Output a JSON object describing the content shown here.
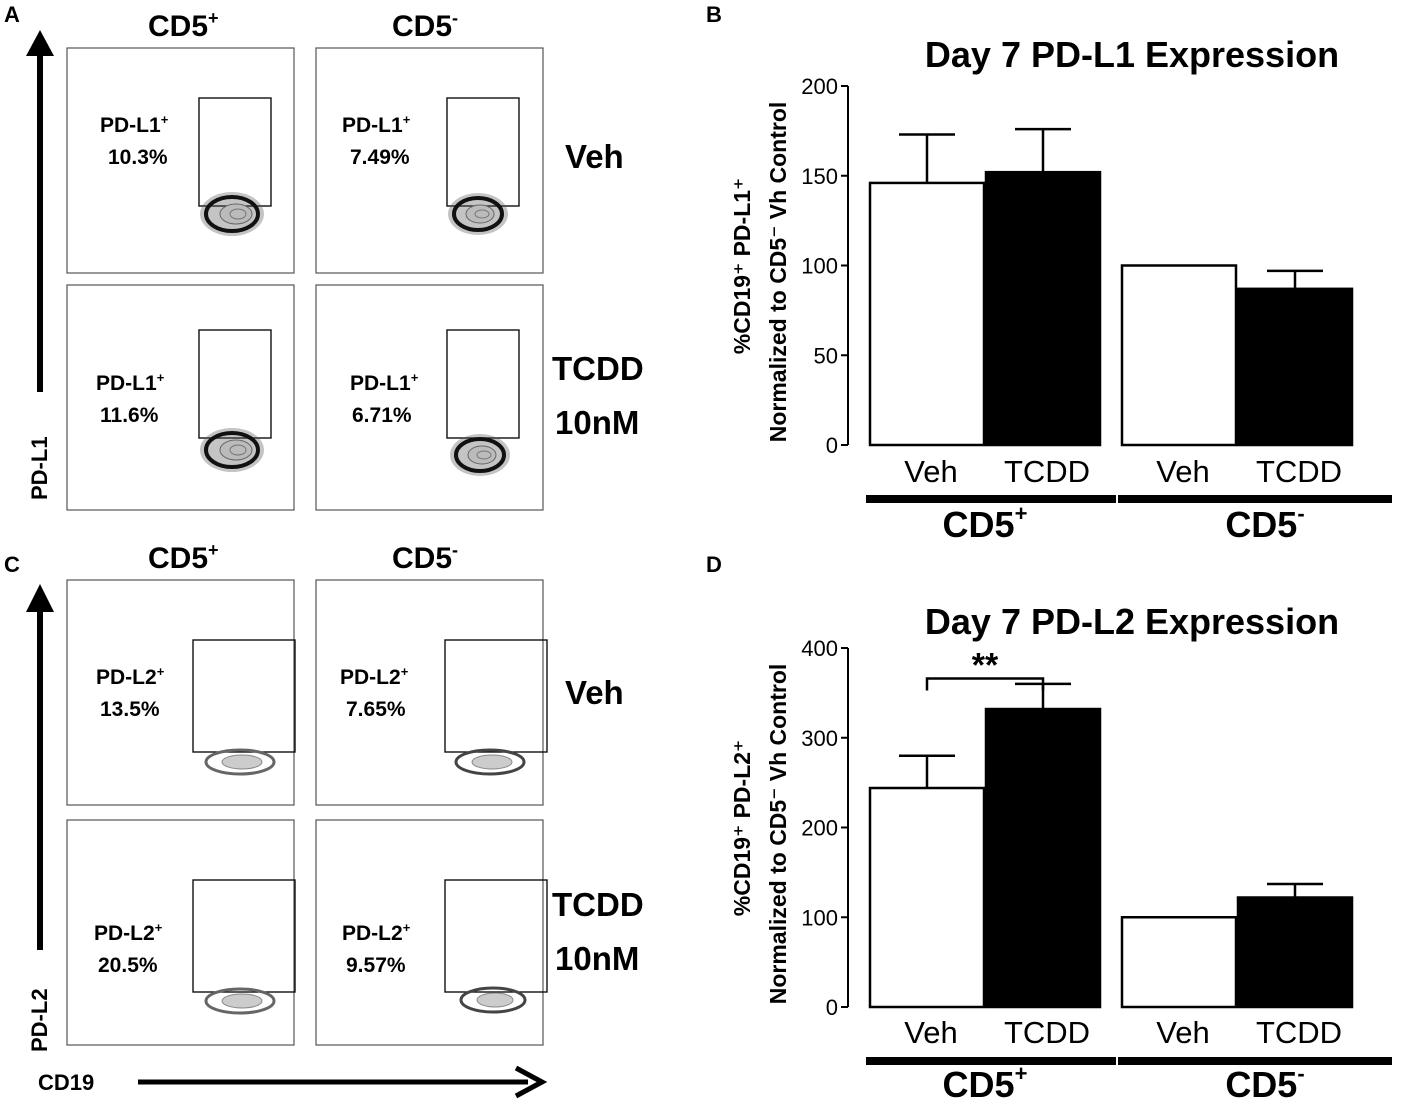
{
  "panels": {
    "A": "A",
    "B": "B",
    "C": "C",
    "D": "D"
  },
  "flow": {
    "pdl1": {
      "col_heads": [
        "CD5",
        "CD5"
      ],
      "col_sups": [
        "+",
        "-"
      ],
      "row_heads": [
        "Veh",
        "TCDD",
        "10nM"
      ],
      "y_axis": "PD-L1",
      "gates": [
        {
          "marker": "PD-L1",
          "sup": "+",
          "percent": "10.3%"
        },
        {
          "marker": "PD-L1",
          "sup": "+",
          "percent": "7.49%"
        },
        {
          "marker": "PD-L1",
          "sup": "+",
          "percent": "11.6%"
        },
        {
          "marker": "PD-L1",
          "sup": "+",
          "percent": "6.71%"
        }
      ]
    },
    "pdl2": {
      "col_heads": [
        "CD5",
        "CD5"
      ],
      "col_sups": [
        "+",
        "-"
      ],
      "row_heads": [
        "Veh",
        "TCDD",
        "10nM"
      ],
      "y_axis": "PD-L2",
      "x_axis": "CD19",
      "gates": [
        {
          "marker": "PD-L2",
          "sup": "+",
          "percent": "13.5%"
        },
        {
          "marker": "PD-L2",
          "sup": "+",
          "percent": "7.65%"
        },
        {
          "marker": "PD-L2",
          "sup": "+",
          "percent": "20.5%"
        },
        {
          "marker": "PD-L2",
          "sup": "+",
          "percent": "9.57%"
        }
      ]
    }
  },
  "chart_data": [
    {
      "type": "bar",
      "title": "Day 7 PD-L1 Expression",
      "ylabel_line1": "%CD19⁺ PD-L1⁺",
      "ylabel_line2": "Normalized to CD5⁻ Vh Control",
      "ylim": [
        0,
        200
      ],
      "yticks": [
        "0",
        "50",
        "100",
        "150",
        "200"
      ],
      "categories": [
        "Veh",
        "TCDD",
        "Veh",
        "TCDD"
      ],
      "groups": [
        {
          "label": "CD5",
          "sup": "+"
        },
        {
          "label": "CD5",
          "sup": "-"
        }
      ],
      "values": [
        146,
        152,
        100,
        87
      ],
      "errors": [
        27,
        24,
        0,
        10
      ],
      "fills": [
        "#ffffff",
        "#000000",
        "#ffffff",
        "#000000"
      ],
      "significance": null
    },
    {
      "type": "bar",
      "title": "Day 7 PD-L2 Expression",
      "ylabel_line1": "%CD19⁺ PD-L2⁺",
      "ylabel_line2": "Normalized to CD5⁻ Vh Control",
      "ylim": [
        0,
        400
      ],
      "yticks": [
        "0",
        "100",
        "200",
        "300",
        "400"
      ],
      "categories": [
        "Veh",
        "TCDD",
        "Veh",
        "TCDD"
      ],
      "groups": [
        {
          "label": "CD5",
          "sup": "+"
        },
        {
          "label": "CD5",
          "sup": "-"
        }
      ],
      "values": [
        244,
        332,
        100,
        122
      ],
      "errors": [
        36,
        28,
        0,
        15
      ],
      "fills": [
        "#ffffff",
        "#000000",
        "#ffffff",
        "#000000"
      ],
      "significance": {
        "between": [
          0,
          1
        ],
        "label": "**"
      }
    }
  ]
}
